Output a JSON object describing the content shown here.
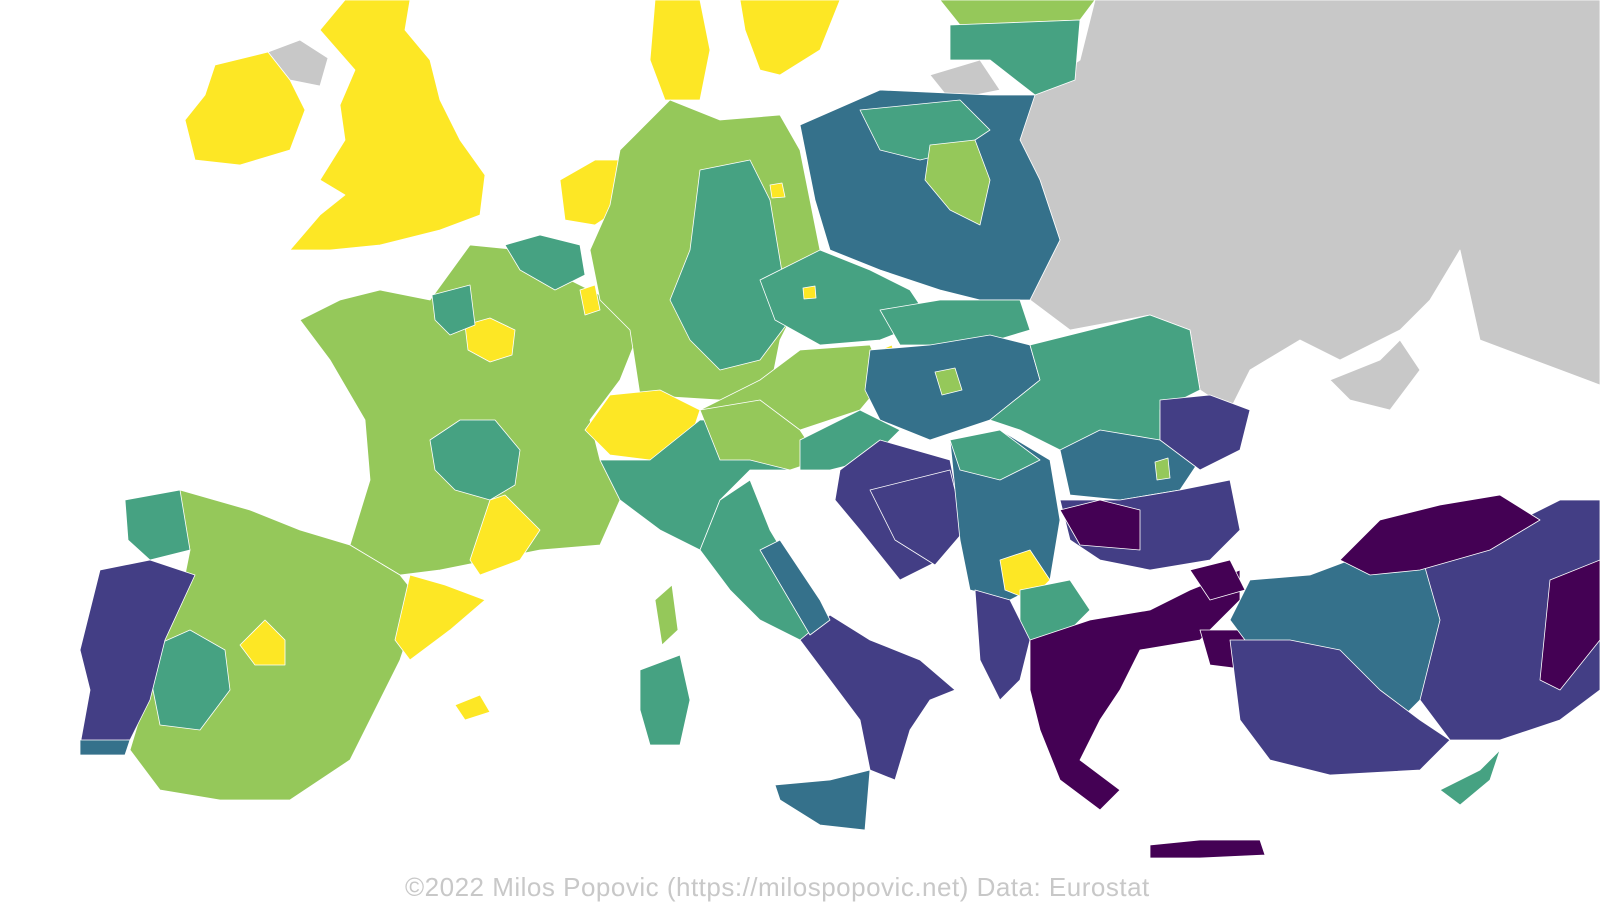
{
  "map": {
    "type": "choropleth",
    "region": "Europe (NUTS regions)",
    "palette": {
      "class1": "#fde725",
      "class2": "#95c85a",
      "class3": "#46a282",
      "class4": "#35718b",
      "class5": "#433e85",
      "class6": "#440154",
      "no_data": "#c8c8c8",
      "background": "#ffffff"
    }
  },
  "caption": "©2022 Milos Popovic (https://milospopovic.net) Data: Eurostat"
}
